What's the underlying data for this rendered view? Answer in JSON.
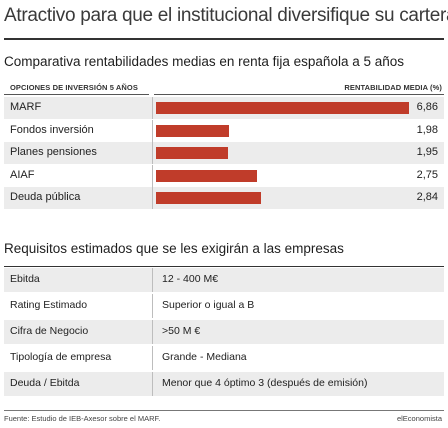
{
  "title": "Atractivo para que el institucional diversifique su cartera",
  "chart_data": {
    "type": "bar",
    "title": "Comparativa rentabilidades medias en renta fija española a 5 años",
    "category_header": "OPCIONES DE INVERSIÓN 5 AÑOS",
    "value_header": "RENTABILIDAD MEDIA (%)",
    "categories": [
      "MARF",
      "Fondos inversión",
      "Planes pensiones",
      "AIAF",
      "Deuda pública"
    ],
    "values": [
      6.86,
      1.98,
      1.95,
      2.75,
      2.84
    ],
    "value_labels": [
      "6,86",
      "1,98",
      "1,95",
      "2,75",
      "2,84"
    ],
    "bar_color": "#c03c2a",
    "ylim": [
      0,
      7
    ]
  },
  "requirements": {
    "title": "Requisitos estimados que se les exigirán a las empresas",
    "rows": [
      {
        "key": "Ebitda",
        "value": "12 - 400 M€"
      },
      {
        "key": "Rating Estimado",
        "value": "Superior o igual a B"
      },
      {
        "key": "Cifra de Negocio",
        "value": ">50 M €"
      },
      {
        "key": "Tipología de empresa",
        "value": "Grande - Mediana"
      },
      {
        "key": "Deuda / Ebitda",
        "value": "Menor que 4 óptimo 3 (después de emisión)"
      }
    ]
  },
  "footer": {
    "source": "Fuente: Estudio de IEB-Axesor sobre el MARF.",
    "brand": "elEconomista"
  }
}
